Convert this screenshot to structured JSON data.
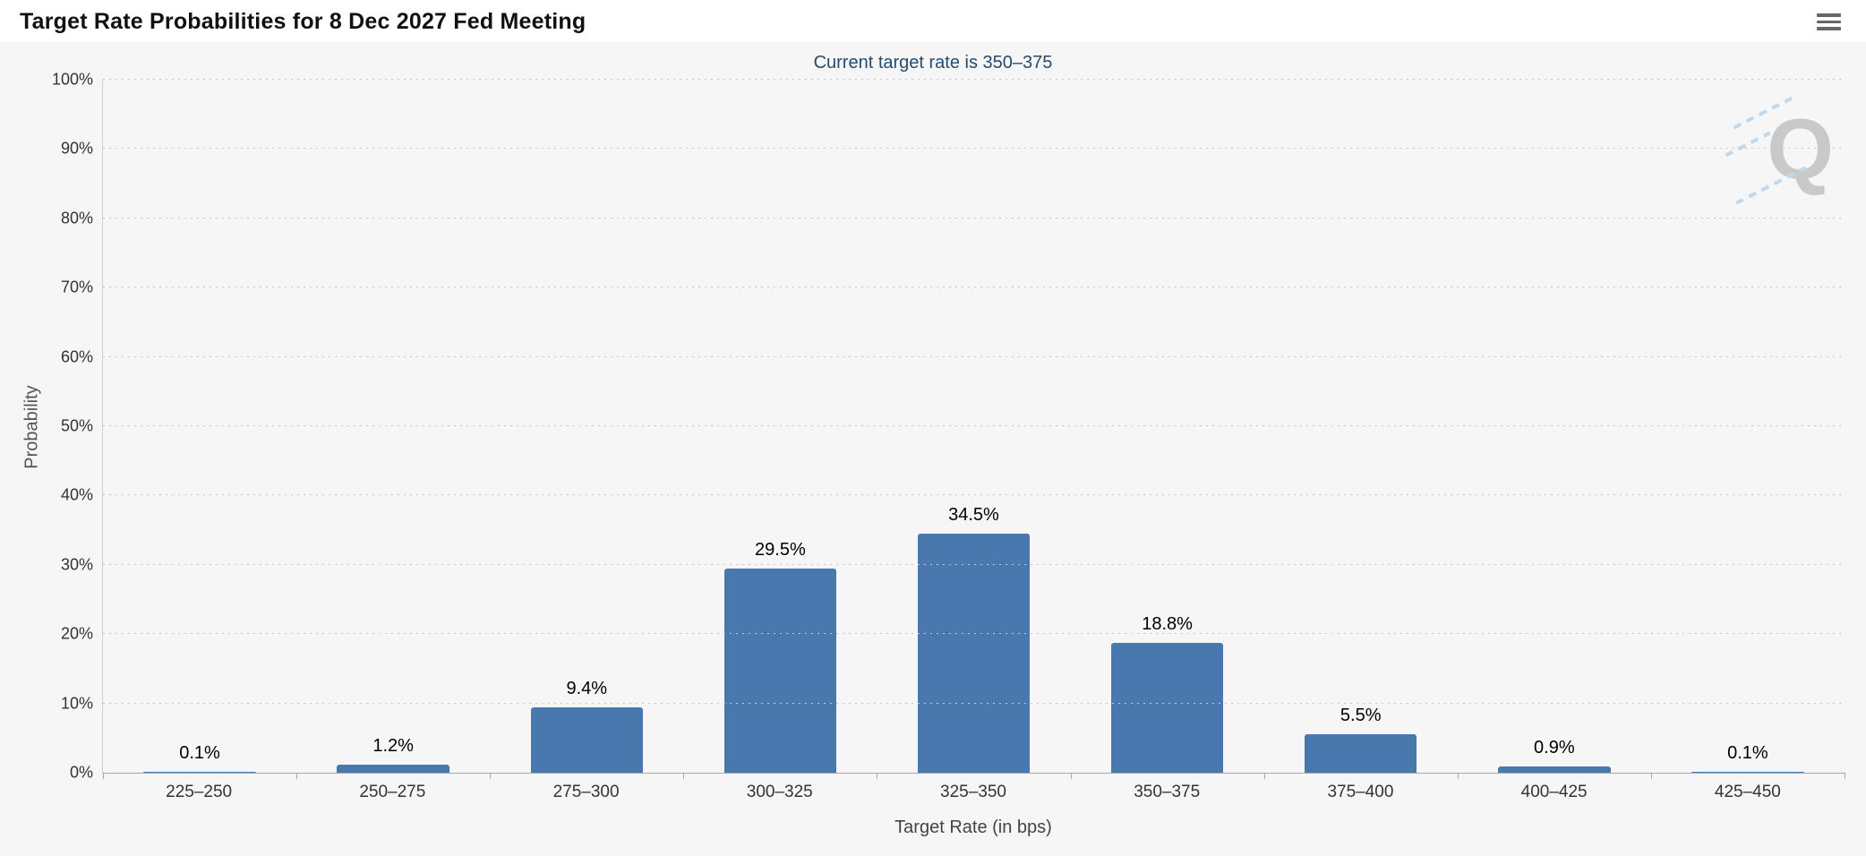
{
  "header": {
    "title": "Target Rate Probabilities for 8 Dec 2027 Fed Meeting",
    "menu_icon": "hamburger-icon"
  },
  "chart_data": {
    "type": "bar",
    "title": "Target Rate Probabilities for 8 Dec 2027 Fed Meeting",
    "subtitle": "Current target rate is 350–375",
    "categories": [
      "225–250",
      "250–275",
      "275–300",
      "300–325",
      "325–350",
      "350–375",
      "375–400",
      "400–425",
      "425–450"
    ],
    "values": [
      0.1,
      1.2,
      9.4,
      29.5,
      34.5,
      18.8,
      5.5,
      0.9,
      0.1
    ],
    "value_labels": [
      "0.1%",
      "1.2%",
      "9.4%",
      "29.5%",
      "34.5%",
      "18.8%",
      "5.5%",
      "0.9%",
      "0.1%"
    ],
    "xlabel": "Target Rate (in bps)",
    "ylabel": "Probability",
    "ylim": [
      0,
      100
    ],
    "yticks": [
      0,
      10,
      20,
      30,
      40,
      50,
      60,
      70,
      80,
      90,
      100
    ],
    "ytick_suffix": "%",
    "grid": "dotted-horizontal",
    "legend": "none",
    "bar_color": "#4878ad",
    "subtitle_color": "#274b6d",
    "background_color": "#f6f6f6",
    "watermark": "Q"
  }
}
